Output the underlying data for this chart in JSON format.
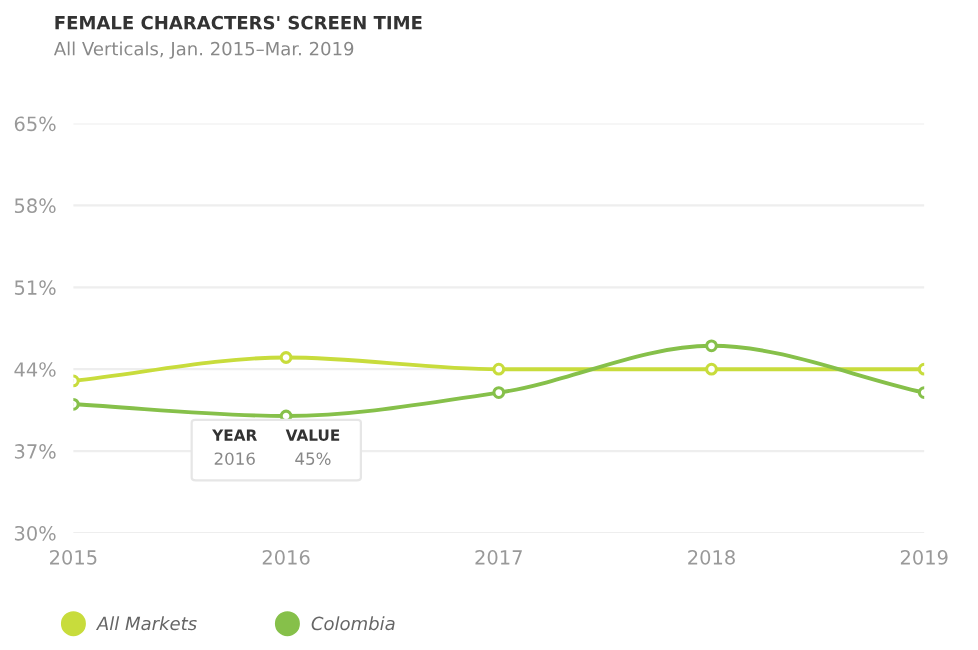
{
  "chart_data": {
    "type": "line",
    "title": "FEMALE CHARACTERS' SCREEN TIME",
    "subtitle": "All Verticals, Jan. 2015–Mar. 2019",
    "x": [
      2015,
      2016,
      2017,
      2018,
      2019
    ],
    "series": [
      {
        "name": "All Markets",
        "color": "#c8dc3c",
        "values": [
          43,
          45,
          44,
          44,
          44
        ]
      },
      {
        "name": "Colombia",
        "color": "#86c04a",
        "values": [
          41,
          40,
          42,
          46,
          42
        ]
      }
    ],
    "xlim": [
      2015,
      2019
    ],
    "xticks": [
      2015,
      2016,
      2017,
      2018,
      2019
    ],
    "ylim": [
      30,
      65
    ],
    "yticks": [
      {
        "value": 30,
        "label": "30%"
      },
      {
        "value": 37,
        "label": "37%"
      },
      {
        "value": 44,
        "label": "44%"
      },
      {
        "value": 51,
        "label": "51%"
      },
      {
        "value": 58,
        "label": "58%"
      },
      {
        "value": 65,
        "label": "65%"
      }
    ],
    "annotations": [
      "YEAR",
      "2016",
      "VALUE",
      "45%"
    ],
    "grid": "y",
    "legend": "bottom left",
    "marker": "circle",
    "line_style": "solid"
  }
}
